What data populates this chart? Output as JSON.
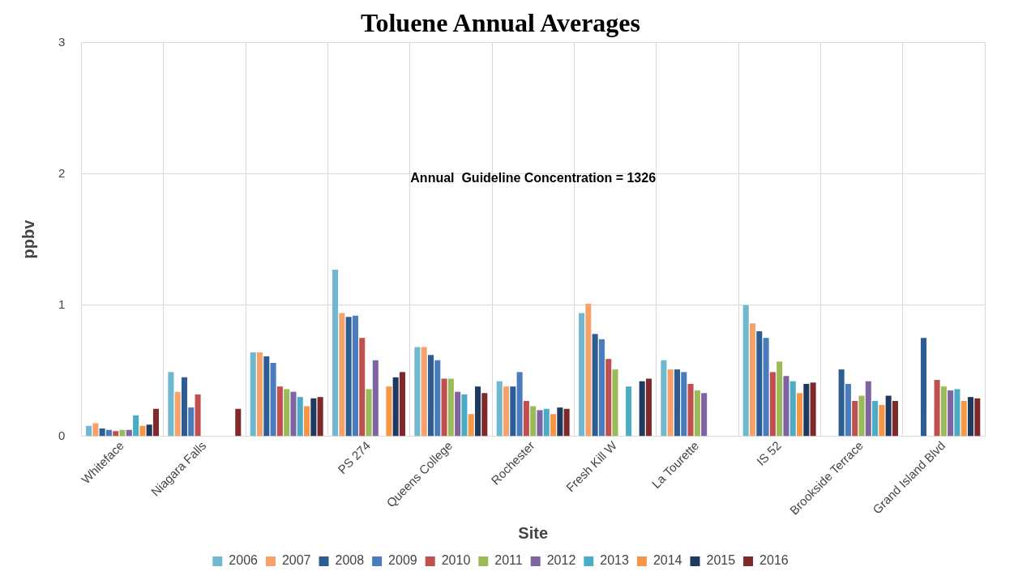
{
  "chart_data": {
    "type": "bar",
    "title": "Toluene Annual Averages",
    "xlabel": "Site",
    "ylabel": "ppbv",
    "annotations": [
      "Annual  Guideline Concentration = 1326"
    ],
    "categories": [
      "Whiteface",
      "Niagara Falls",
      null,
      "PS 274",
      "Queens College",
      "Rochester",
      "Fresh Kill W",
      "La Tourette",
      "IS 52",
      "Brookside Terrace",
      "Grand Island Blvd"
    ],
    "series": [
      {
        "name": "2006",
        "color": "#6fb8d0",
        "values": [
          0.08,
          0.49,
          0.64,
          1.27,
          0.68,
          0.42,
          0.94,
          0.58,
          1.0,
          null,
          null
        ]
      },
      {
        "name": "2007",
        "color": "#f5a36a",
        "values": [
          0.1,
          0.34,
          0.64,
          0.94,
          0.68,
          0.38,
          1.01,
          0.51,
          0.86,
          null,
          null
        ]
      },
      {
        "name": "2008",
        "color": "#2e5d93",
        "values": [
          0.06,
          0.45,
          0.61,
          0.91,
          0.62,
          0.38,
          0.78,
          0.51,
          0.8,
          0.51,
          0.75
        ]
      },
      {
        "name": "2009",
        "color": "#4a7bbd",
        "values": [
          0.05,
          0.22,
          0.56,
          0.92,
          0.58,
          0.49,
          0.74,
          0.49,
          0.75,
          0.4,
          null
        ]
      },
      {
        "name": "2010",
        "color": "#c0504d",
        "values": [
          0.04,
          0.32,
          0.38,
          0.75,
          0.44,
          0.27,
          0.59,
          0.4,
          0.49,
          0.27,
          0.43
        ]
      },
      {
        "name": "2011",
        "color": "#9bbb59",
        "values": [
          0.05,
          null,
          0.36,
          0.36,
          0.44,
          0.23,
          0.51,
          0.35,
          0.57,
          0.31,
          0.38
        ]
      },
      {
        "name": "2012",
        "color": "#8064a2",
        "values": [
          0.05,
          null,
          0.34,
          0.58,
          0.34,
          0.2,
          null,
          0.33,
          0.46,
          0.42,
          0.35
        ]
      },
      {
        "name": "2013",
        "color": "#4bacc6",
        "values": [
          0.16,
          null,
          0.3,
          null,
          0.32,
          0.21,
          0.38,
          null,
          0.42,
          0.27,
          0.36
        ]
      },
      {
        "name": "2014",
        "color": "#f79646",
        "values": [
          0.08,
          null,
          0.23,
          0.38,
          0.17,
          0.17,
          null,
          null,
          0.33,
          0.24,
          0.27
        ]
      },
      {
        "name": "2015",
        "color": "#1f3a5f",
        "values": [
          0.09,
          null,
          0.29,
          0.45,
          0.38,
          0.22,
          0.42,
          null,
          0.4,
          0.31,
          0.3
        ]
      },
      {
        "name": "2016",
        "color": "#7f2a2a",
        "values": [
          0.21,
          0.21,
          0.3,
          0.49,
          0.33,
          0.21,
          0.44,
          null,
          0.41,
          0.27,
          0.29
        ]
      }
    ],
    "ylim": [
      0,
      3
    ],
    "yticks": [
      0,
      1,
      2,
      3
    ],
    "grid": true,
    "legend": "bottom"
  }
}
